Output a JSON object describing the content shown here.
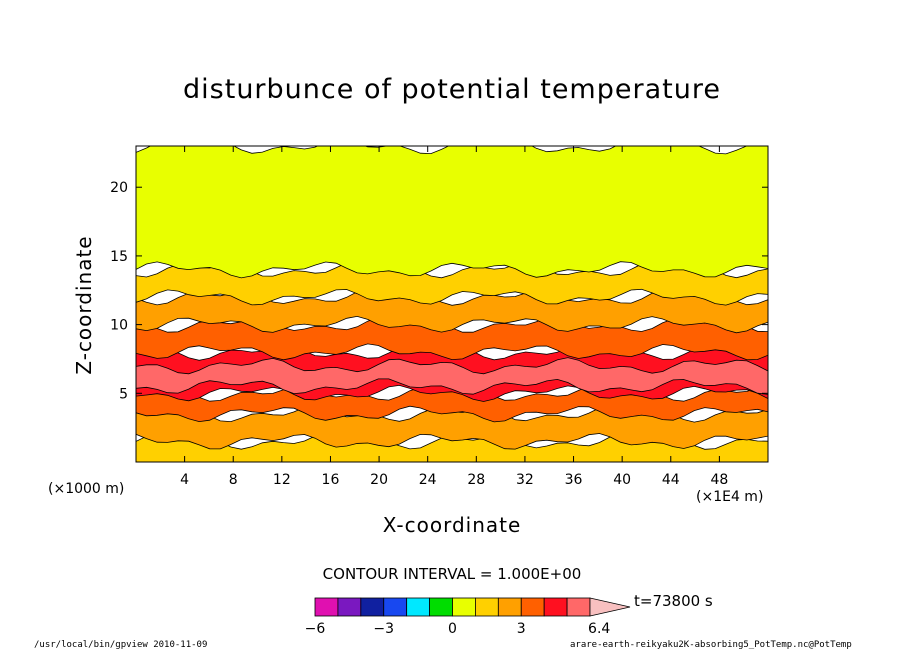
{
  "chart_data": {
    "type": "heatmap",
    "title": "disturbunce of potential temperature",
    "xlabel": "X-coordinate",
    "ylabel": "Z-coordinate",
    "x_unit_left": "(×1000 m)",
    "x_unit_right": "(×1E4 m)",
    "xlim": [
      0,
      52
    ],
    "ylim": [
      0,
      23
    ],
    "x_ticks": [
      4,
      8,
      12,
      16,
      20,
      24,
      28,
      32,
      36,
      40,
      44,
      48
    ],
    "y_ticks": [
      5,
      10,
      15,
      20
    ],
    "contour_interval": "CONTOUR INTERVAL = 1.000E+00",
    "time_label": "t=73800 s",
    "colorbar": {
      "levels": [
        -6,
        -5,
        -4,
        -3,
        -2,
        -1,
        0,
        1,
        2,
        3,
        4,
        5,
        6,
        6.4
      ],
      "tick_labels": [
        "−6",
        "−3",
        "0",
        "3",
        "6.4"
      ],
      "tick_values": [
        -6,
        -3,
        0,
        3,
        6.4
      ],
      "colors": [
        "#e010b0",
        "#7a18c0",
        "#1020a0",
        "#1848f0",
        "#00e8ff",
        "#00dd00",
        "#e8ff00",
        "#ffd000",
        "#ffa000",
        "#ff6000",
        "#ff1020",
        "#ff6868",
        "#f8c0c0"
      ]
    },
    "bands": [
      {
        "value_range": [
          1,
          2
        ],
        "z_range": [
          0,
          1.5
        ]
      },
      {
        "value_range": [
          2,
          3
        ],
        "z_range": [
          1.5,
          3.5
        ]
      },
      {
        "value_range": [
          3,
          4
        ],
        "z_range": [
          3.5,
          5
        ]
      },
      {
        "value_range": [
          4,
          5
        ],
        "z_range": [
          5,
          8
        ]
      },
      {
        "value_range": [
          5,
          6
        ],
        "z_range": [
          5.5,
          7
        ]
      },
      {
        "value_range": [
          3,
          4
        ],
        "z_range": [
          8,
          10
        ]
      },
      {
        "value_range": [
          2,
          3
        ],
        "z_range": [
          10,
          12
        ]
      },
      {
        "value_range": [
          1,
          2
        ],
        "z_range": [
          12,
          14
        ]
      },
      {
        "value_range": [
          0,
          1
        ],
        "z_range": [
          14,
          23
        ]
      }
    ]
  },
  "footer": {
    "left": "/usr/local/bin/gpview  2010-11-09",
    "right": "arare-earth-reikyaku2K-absorbing5_PotTemp.nc@PotTemp"
  }
}
